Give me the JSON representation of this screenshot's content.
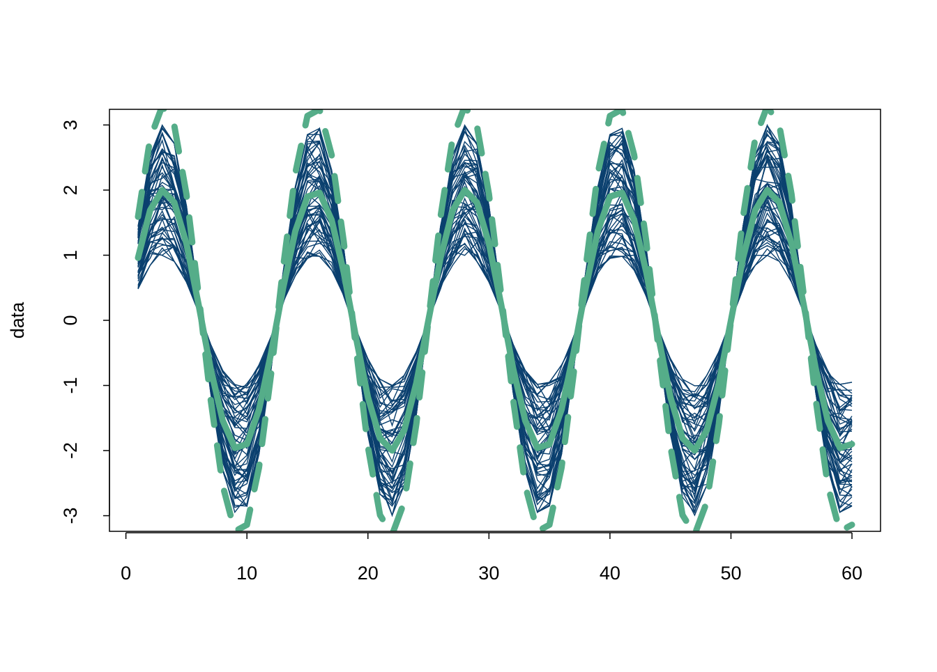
{
  "chart_data": {
    "type": "line",
    "title": "",
    "xlabel": "",
    "ylabel": "data",
    "xlim": [
      -1.36,
      62.36
    ],
    "ylim": [
      -3.24,
      3.24
    ],
    "x_ticks": [
      0,
      10,
      20,
      30,
      40,
      50,
      60
    ],
    "y_ticks": [
      -3,
      -2,
      -1,
      0,
      1,
      2,
      3
    ],
    "x_tick_labels": [
      "0",
      "10",
      "20",
      "30",
      "40",
      "50",
      "60"
    ],
    "y_tick_labels": [
      "-3",
      "-2",
      "-1",
      "0",
      "1",
      "2",
      "3"
    ],
    "grid": false,
    "legend": "none",
    "x": [
      1,
      2,
      3,
      4,
      5,
      6,
      7,
      8,
      9,
      10,
      11,
      12,
      13,
      14,
      15,
      16,
      17,
      18,
      19,
      20,
      21,
      22,
      23,
      24,
      25,
      26,
      27,
      28,
      29,
      30,
      31,
      32,
      33,
      34,
      35,
      36,
      37,
      38,
      39,
      40,
      41,
      42,
      43,
      44,
      45,
      46,
      47,
      48,
      49,
      50,
      51,
      52,
      53,
      54,
      55,
      56,
      57,
      58,
      59,
      60
    ],
    "curves": {
      "description": "sample curves: amplitude times shared sinusoid (period 12.5)",
      "period": 12.5,
      "amplitudes": [
        1.0,
        1.03,
        1.07,
        1.1,
        1.14,
        1.17,
        1.2,
        1.24,
        1.27,
        1.31,
        1.34,
        1.37,
        1.41,
        1.44,
        1.47,
        1.51,
        1.54,
        1.58,
        1.61,
        1.64,
        1.68,
        1.71,
        1.75,
        1.78,
        1.81,
        1.85,
        1.88,
        1.92,
        1.95,
        1.98,
        2.02,
        2.05,
        2.08,
        2.12,
        2.15,
        2.19,
        2.22,
        2.25,
        2.29,
        2.32,
        2.36,
        2.39,
        2.42,
        2.46,
        2.49,
        2.53,
        2.56,
        2.59,
        2.63,
        2.66,
        2.69,
        2.73,
        2.76,
        2.8,
        2.83,
        2.86,
        2.9,
        2.93,
        2.97,
        3.0
      ],
      "color": "#0B406F"
    },
    "series": [
      {
        "role": "mean",
        "style": "solid",
        "color": "#55AD89",
        "values": [
          0.96,
          1.69,
          2.0,
          1.81,
          1.18,
          0.25,
          -0.74,
          -1.54,
          -1.96,
          -1.9,
          -1.37,
          -0.5,
          0.5,
          1.37,
          1.9,
          1.96,
          1.54,
          0.74,
          -0.25,
          -1.18,
          -1.81,
          -2.0,
          -1.69,
          -0.96,
          0,
          0.96,
          1.69,
          2.0,
          1.81,
          1.18,
          0.25,
          -0.74,
          -1.54,
          -1.96,
          -1.9,
          -1.37,
          -0.5,
          0.5,
          1.37,
          1.9,
          1.96,
          1.54,
          0.74,
          -0.25,
          -1.18,
          -1.81,
          -2.0,
          -1.69,
          -0.96,
          0,
          0.96,
          1.69,
          2.0,
          1.81,
          1.18,
          0.25,
          -0.74,
          -1.54,
          -1.96,
          -1.9
        ]
      },
      {
        "role": "band",
        "style": "dashed",
        "color": "#55AD89",
        "values": [
          1.59,
          2.79,
          3.29,
          2.99,
          1.94,
          0.41,
          -1.21,
          -2.54,
          -3.24,
          -3.14,
          -2.26,
          -0.82,
          0.82,
          2.26,
          3.14,
          3.24,
          2.54,
          1.21,
          -0.41,
          -1.94,
          -2.99,
          -3.29,
          -2.79,
          -1.59,
          0,
          1.59,
          2.79,
          3.29,
          2.99,
          1.94,
          0.41,
          -1.21,
          -2.54,
          -3.24,
          -3.14,
          -2.26,
          -0.82,
          0.82,
          2.26,
          3.14,
          3.24,
          2.54,
          1.21,
          -0.41,
          -1.94,
          -2.99,
          -3.29,
          -2.79,
          -1.59,
          0,
          1.59,
          2.79,
          3.29,
          2.99,
          1.94,
          0.41,
          -1.21,
          -2.54,
          -3.24,
          -3.14
        ]
      }
    ]
  }
}
